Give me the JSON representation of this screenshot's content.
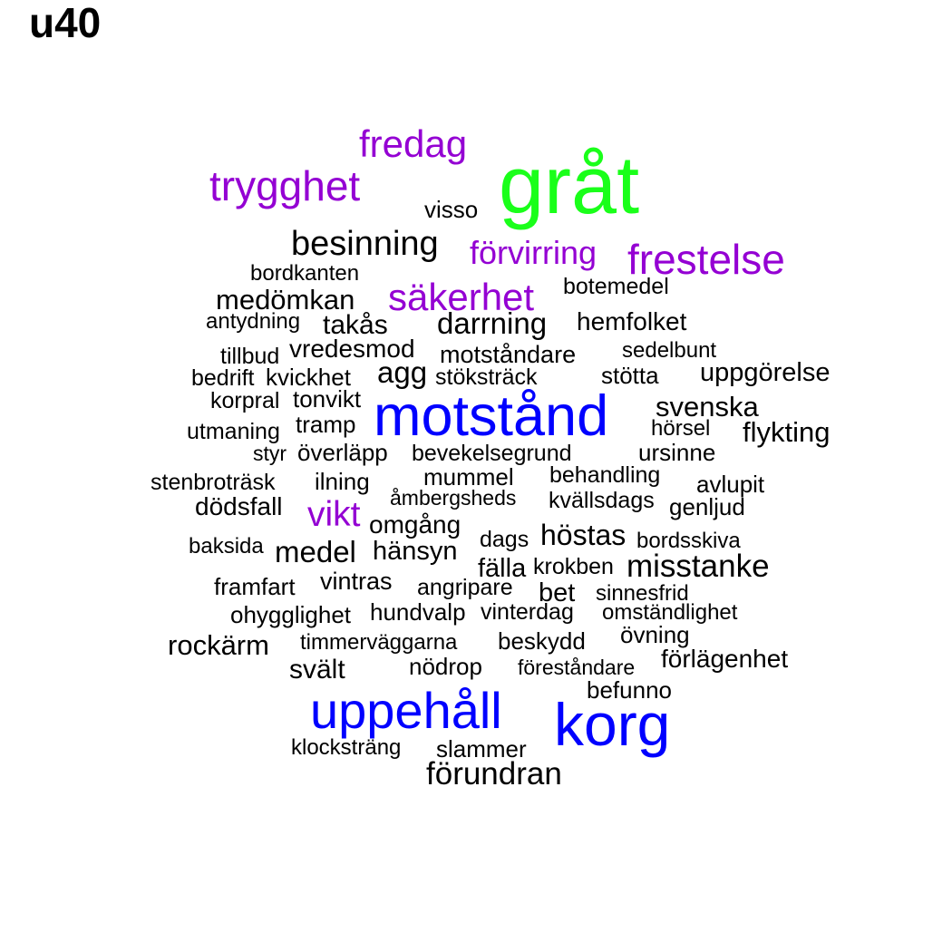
{
  "title": "u40",
  "colors": {
    "green": "#1aff1a",
    "purple": "#9400d3",
    "blue": "#0000ff",
    "black": "#000000"
  },
  "words": [
    {
      "text": "gråt",
      "color": "green"
    },
    {
      "text": "fredag",
      "color": "purple"
    },
    {
      "text": "trygghet",
      "color": "purple"
    },
    {
      "text": "visso",
      "color": "black"
    },
    {
      "text": "besinning",
      "color": "black"
    },
    {
      "text": "förvirring",
      "color": "purple"
    },
    {
      "text": "frestelse",
      "color": "purple"
    },
    {
      "text": "bordkanten",
      "color": "black"
    },
    {
      "text": "botemedel",
      "color": "black"
    },
    {
      "text": "medömkan",
      "color": "black"
    },
    {
      "text": "säkerhet",
      "color": "purple"
    },
    {
      "text": "antydning",
      "color": "black"
    },
    {
      "text": "takås",
      "color": "black"
    },
    {
      "text": "darrning",
      "color": "black"
    },
    {
      "text": "hemfolket",
      "color": "black"
    },
    {
      "text": "vredesmod",
      "color": "black"
    },
    {
      "text": "tillbud",
      "color": "black"
    },
    {
      "text": "motståndare",
      "color": "black"
    },
    {
      "text": "sedelbunt",
      "color": "black"
    },
    {
      "text": "bedrift",
      "color": "black"
    },
    {
      "text": "kvickhet",
      "color": "black"
    },
    {
      "text": "agg",
      "color": "black"
    },
    {
      "text": "stöksträck",
      "color": "black"
    },
    {
      "text": "stötta",
      "color": "black"
    },
    {
      "text": "uppgörelse",
      "color": "black"
    },
    {
      "text": "korpral",
      "color": "black"
    },
    {
      "text": "tonvikt",
      "color": "black"
    },
    {
      "text": "motstånd",
      "color": "blue"
    },
    {
      "text": "svenska",
      "color": "black"
    },
    {
      "text": "utmaning",
      "color": "black"
    },
    {
      "text": "tramp",
      "color": "black"
    },
    {
      "text": "hörsel",
      "color": "black"
    },
    {
      "text": "flykting",
      "color": "black"
    },
    {
      "text": "styr",
      "color": "black"
    },
    {
      "text": "överläpp",
      "color": "black"
    },
    {
      "text": "bevekelsegrund",
      "color": "black"
    },
    {
      "text": "ursinne",
      "color": "black"
    },
    {
      "text": "stenbroträsk",
      "color": "black"
    },
    {
      "text": "ilning",
      "color": "black"
    },
    {
      "text": "mummel",
      "color": "black"
    },
    {
      "text": "behandling",
      "color": "black"
    },
    {
      "text": "avlupit",
      "color": "black"
    },
    {
      "text": "åmbergsheds",
      "color": "black"
    },
    {
      "text": "kvällsdags",
      "color": "black"
    },
    {
      "text": "genljud",
      "color": "black"
    },
    {
      "text": "dödsfall",
      "color": "black"
    },
    {
      "text": "vikt",
      "color": "purple"
    },
    {
      "text": "omgång",
      "color": "black"
    },
    {
      "text": "höstas",
      "color": "black"
    },
    {
      "text": "dags",
      "color": "black"
    },
    {
      "text": "bordsskiva",
      "color": "black"
    },
    {
      "text": "baksida",
      "color": "black"
    },
    {
      "text": "medel",
      "color": "black"
    },
    {
      "text": "hänsyn",
      "color": "black"
    },
    {
      "text": "fälla",
      "color": "black"
    },
    {
      "text": "krokben",
      "color": "black"
    },
    {
      "text": "misstanke",
      "color": "black"
    },
    {
      "text": "framfart",
      "color": "black"
    },
    {
      "text": "vintras",
      "color": "black"
    },
    {
      "text": "angripare",
      "color": "black"
    },
    {
      "text": "bet",
      "color": "black"
    },
    {
      "text": "sinnesfrid",
      "color": "black"
    },
    {
      "text": "ohygglighet",
      "color": "black"
    },
    {
      "text": "hundvalp",
      "color": "black"
    },
    {
      "text": "vinterdag",
      "color": "black"
    },
    {
      "text": "omständlighet",
      "color": "black"
    },
    {
      "text": "rockärm",
      "color": "black"
    },
    {
      "text": "timmerväggarna",
      "color": "black"
    },
    {
      "text": "beskydd",
      "color": "black"
    },
    {
      "text": "övning",
      "color": "black"
    },
    {
      "text": "förlägenhet",
      "color": "black"
    },
    {
      "text": "svält",
      "color": "black"
    },
    {
      "text": "nödrop",
      "color": "black"
    },
    {
      "text": "föreståndare",
      "color": "black"
    },
    {
      "text": "uppehåll",
      "color": "blue"
    },
    {
      "text": "korg",
      "color": "blue"
    },
    {
      "text": "befunno",
      "color": "black"
    },
    {
      "text": "klocksträng",
      "color": "black"
    },
    {
      "text": "slammer",
      "color": "black"
    },
    {
      "text": "förundran",
      "color": "black"
    }
  ]
}
